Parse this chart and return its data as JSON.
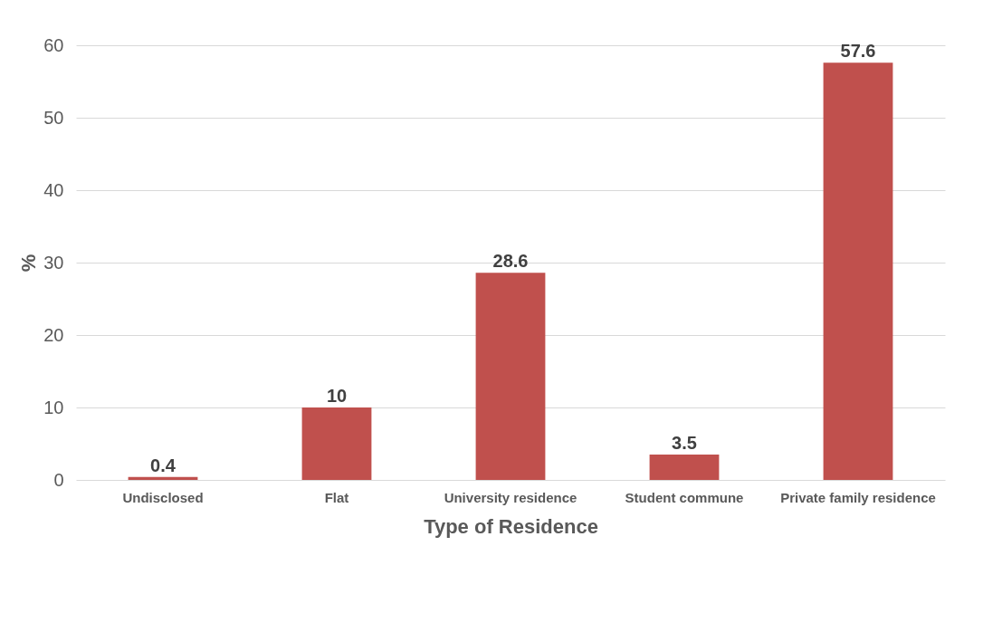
{
  "chart_data": {
    "type": "bar",
    "xlabel": "Type of Residence",
    "ylabel": "%",
    "categories": [
      "Undisclosed",
      "Flat",
      "University residence",
      "Student commune",
      "Private family residence"
    ],
    "values": [
      0.4,
      10,
      28.6,
      3.5,
      57.6
    ],
    "color": "#c0504d",
    "ylim": [
      0,
      60
    ],
    "yticks": [
      0,
      10,
      20,
      30,
      40,
      50,
      60
    ],
    "grid": "y",
    "data_labels": true
  }
}
